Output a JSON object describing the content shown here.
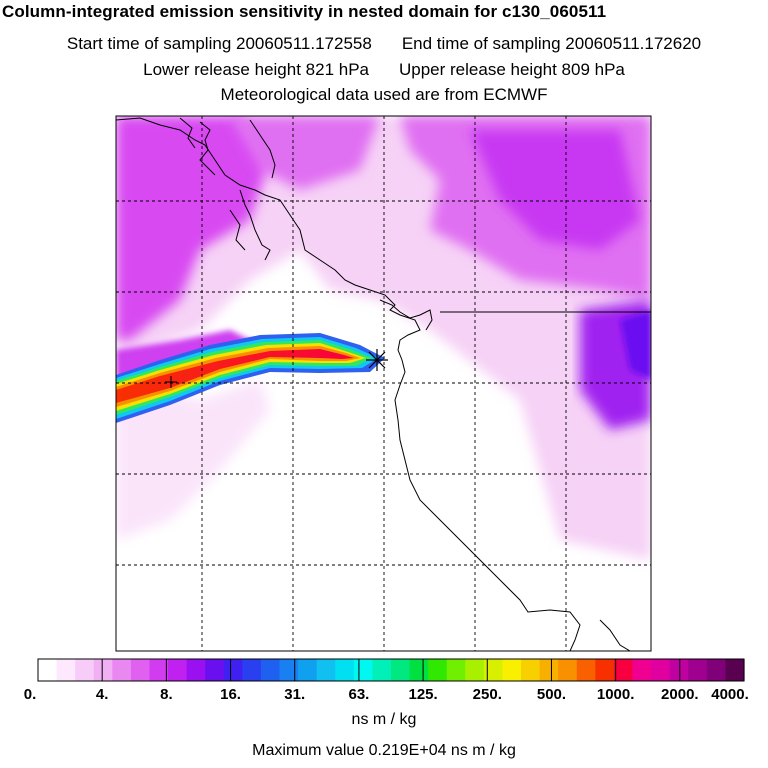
{
  "header": {
    "title": "Column-integrated emission sensitivity in nested domain for c130_060511",
    "start_label": "Start time of sampling 20060511.172558",
    "end_label": "End time of sampling 20060511.172620",
    "lower_label": "Lower release height  821 hPa",
    "upper_label": "Upper release height  809 hPa",
    "met_label": "Meteorological data used are from ECMWF"
  },
  "colorbar": {
    "labels": [
      "0.",
      "4.",
      "8.",
      "16.",
      "31.",
      "63.",
      "125.",
      "250.",
      "500.",
      "1000.",
      "2000.",
      "4000."
    ],
    "colors": [
      "#ffffff",
      "#fde8fd",
      "#f8ccf8",
      "#f2b0f4",
      "#ea88f2",
      "#e060f0",
      "#d23cf0",
      "#c020f0",
      "#9a10f0",
      "#6a10f0",
      "#4020f0",
      "#2a40f0",
      "#2060f0",
      "#1880f0",
      "#10a0f0",
      "#10c0f0",
      "#00e0f0",
      "#00f8f0",
      "#00f0b8",
      "#00e880",
      "#00e040",
      "#30e800",
      "#70f000",
      "#a8f000",
      "#d8f000",
      "#f8f000",
      "#f8d000",
      "#f8b000",
      "#f89000",
      "#f86000",
      "#f83000",
      "#f80040",
      "#f00090",
      "#e000a0",
      "#c000a0",
      "#a00090",
      "#80007a",
      "#5a0050"
    ],
    "units": "ns m / kg"
  },
  "footer": {
    "max_value": "Maximum value  0.219E+04 ns m / kg"
  }
}
